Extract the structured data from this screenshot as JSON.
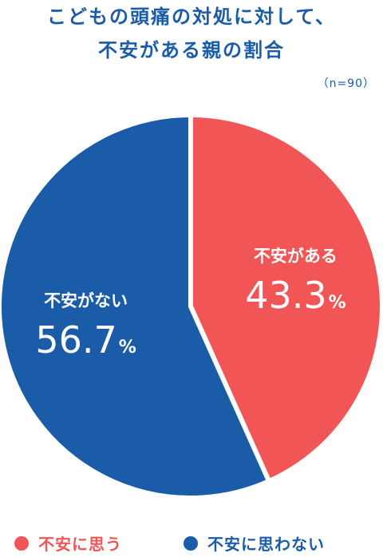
{
  "title_line1": "こどもの頭痛の対処に対して、",
  "title_line2": "不安がある親の割合",
  "sample_note": "（n=90）",
  "colors": {
    "red": "#f25555",
    "blue": "#1b5ca8",
    "white": "#ffffff"
  },
  "chart_data": {
    "type": "pie",
    "title": "こどもの頭痛の対処に対して、不安がある親の割合",
    "slices": [
      {
        "label": "不安がある",
        "value": 43.3,
        "display": "43.3",
        "unit": "%",
        "color": "#f25555"
      },
      {
        "label": "不安がない",
        "value": 56.7,
        "display": "56.7",
        "unit": "%",
        "color": "#1b5ca8"
      }
    ],
    "legend": [
      {
        "label": "不安に思う",
        "color": "#f25555"
      },
      {
        "label": "不安に思わない",
        "color": "#1b5ca8"
      }
    ],
    "legend_position": "bottom"
  }
}
